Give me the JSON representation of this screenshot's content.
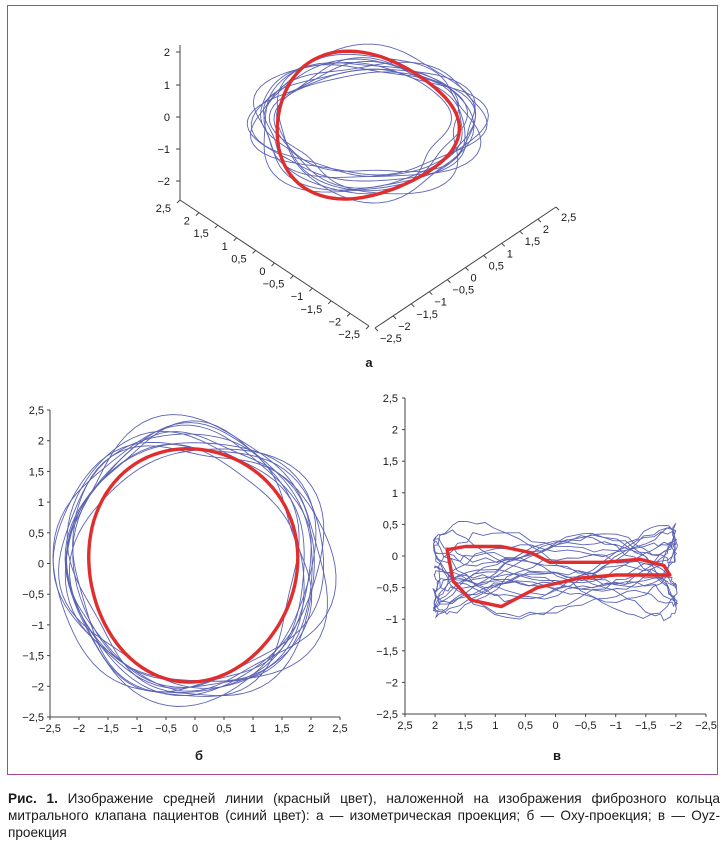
{
  "chart_data": [
    {
      "type": "line",
      "panel_label": "а",
      "projection": "isometric 3D",
      "z_ticks": [
        "2",
        "1",
        "0",
        "−1",
        "−2"
      ],
      "x_ticks": [
        "2,5",
        "2",
        "1,5",
        "1",
        "0,5",
        "0",
        "−0,5",
        "−1",
        "−1,5",
        "−2",
        "−2,5"
      ],
      "y_ticks": [
        "−2,5",
        "−2",
        "−1,5",
        "−1",
        "−0,5",
        "0",
        "0,5",
        "1",
        "1,5",
        "2",
        "2,5"
      ],
      "series": [
        {
          "color": "#5b63b4",
          "count": 12
        },
        {
          "color": "#e02e2e",
          "count": 1
        }
      ]
    },
    {
      "type": "line",
      "panel_label": "б",
      "xlim": [
        -2.5,
        2.5
      ],
      "ylim": [
        -2.5,
        2.5
      ],
      "x_ticks": [
        "−2,5",
        "−2",
        "−1,5",
        "−1",
        "−0,5",
        "0",
        "0,5",
        "1",
        "1,5",
        "2",
        "2,5"
      ],
      "y_ticks": [
        "2,5",
        "2",
        "1,5",
        "1",
        "0,5",
        "0",
        "−0,5",
        "−1",
        "−1,5",
        "−2",
        "−2,5"
      ],
      "red_curve": {
        "center": [
          -0.05,
          0.0
        ],
        "radius_x": 1.8,
        "radius_y": 1.9
      },
      "series": [
        {
          "color": "#5b63b4",
          "count": 12
        },
        {
          "color": "#e02e2e",
          "count": 1
        }
      ]
    },
    {
      "type": "line",
      "panel_label": "в",
      "xlim": [
        2.5,
        -2.5
      ],
      "ylim": [
        -2.5,
        2.5
      ],
      "x_ticks": [
        "2,5",
        "2",
        "1,5",
        "1",
        "0,5",
        "0",
        "−0,5",
        "−1",
        "−1,5",
        "−2",
        "−2,5"
      ],
      "y_ticks": [
        "2,5",
        "2",
        "1,5",
        "1",
        "0,5",
        "0",
        "−0,5",
        "−1",
        "−1,5",
        "−2",
        "−2,5"
      ],
      "red_curve_points": [
        [
          1.8,
          0.1
        ],
        [
          1.5,
          0.15
        ],
        [
          0.9,
          0.15
        ],
        [
          0.4,
          0.05
        ],
        [
          0.1,
          -0.1
        ],
        [
          -0.3,
          -0.1
        ],
        [
          -0.8,
          -0.1
        ],
        [
          -1.4,
          -0.05
        ],
        [
          -1.8,
          -0.15
        ],
        [
          -1.9,
          -0.3
        ],
        [
          -1.5,
          -0.3
        ],
        [
          -1.0,
          -0.3
        ],
        [
          -0.4,
          -0.35
        ],
        [
          0.3,
          -0.5
        ],
        [
          0.9,
          -0.8
        ],
        [
          1.4,
          -0.7
        ],
        [
          1.7,
          -0.4
        ],
        [
          1.8,
          0.1
        ]
      ],
      "series": [
        {
          "color": "#5b63b4",
          "count": 12
        },
        {
          "color": "#e02e2e",
          "count": 1
        }
      ]
    }
  ],
  "caption": {
    "prefix": "Рис. 1.",
    "text": "Изображение средней линии (красный цвет), наложенной на изображения фиброзного кольца митрального клапана пациентов (синий цвет): а — изометрическая проекция; б — Oxy-проекция; в — Oyz-проекция"
  }
}
